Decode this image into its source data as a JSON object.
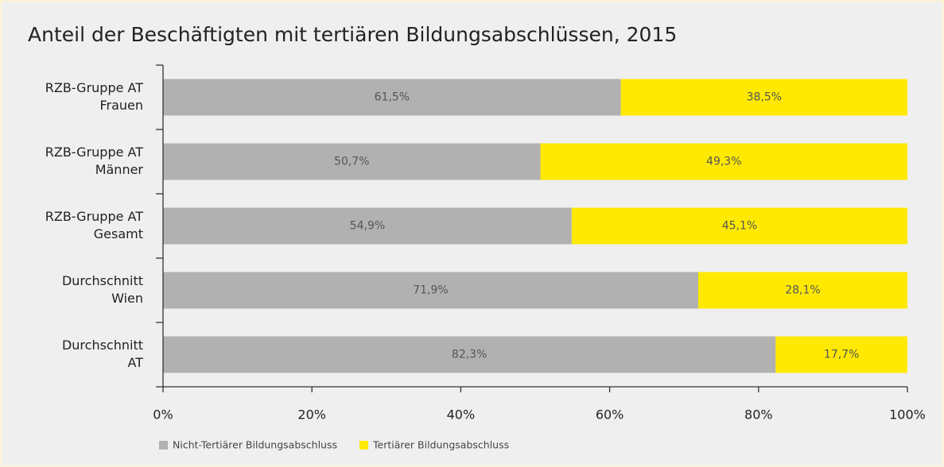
{
  "chart_data": {
    "type": "stacked_barh",
    "title": "Anteil der Beschäftigten mit tertiären Bildungsabschlüssen, 2015",
    "categories": [
      [
        "RZB-Gruppe AT",
        "Frauen"
      ],
      [
        "RZB-Gruppe AT",
        "Männer"
      ],
      [
        "RZB-Gruppe AT",
        "Gesamt"
      ],
      [
        "Durchschnitt",
        "Wien"
      ],
      [
        "Durchschnitt",
        "AT"
      ]
    ],
    "series": [
      {
        "name": "Nicht-Tertiärer Bildungsabschluss",
        "color": "#b1b1b1",
        "values": [
          61.5,
          50.7,
          54.9,
          71.9,
          82.3
        ],
        "value_labels": [
          "61,5%",
          "50,7%",
          "54,9%",
          "71,9%",
          "82,3%"
        ]
      },
      {
        "name": "Tertiärer Bildungsabschluss",
        "color": "#ffe900",
        "values": [
          38.5,
          49.3,
          45.1,
          28.1,
          17.7
        ],
        "value_labels": [
          "38,5%",
          "49,3%",
          "45,1%",
          "28,1%",
          "17,7%"
        ]
      }
    ],
    "xlim": [
      0,
      100
    ],
    "xticks": [
      {
        "value": 0,
        "label": "0%"
      },
      {
        "value": 20,
        "label": "20%"
      },
      {
        "value": 40,
        "label": "40%"
      },
      {
        "value": 60,
        "label": "60%"
      },
      {
        "value": 80,
        "label": "80%"
      },
      {
        "value": 100,
        "label": "100%"
      }
    ],
    "legend": "bottom-left"
  }
}
